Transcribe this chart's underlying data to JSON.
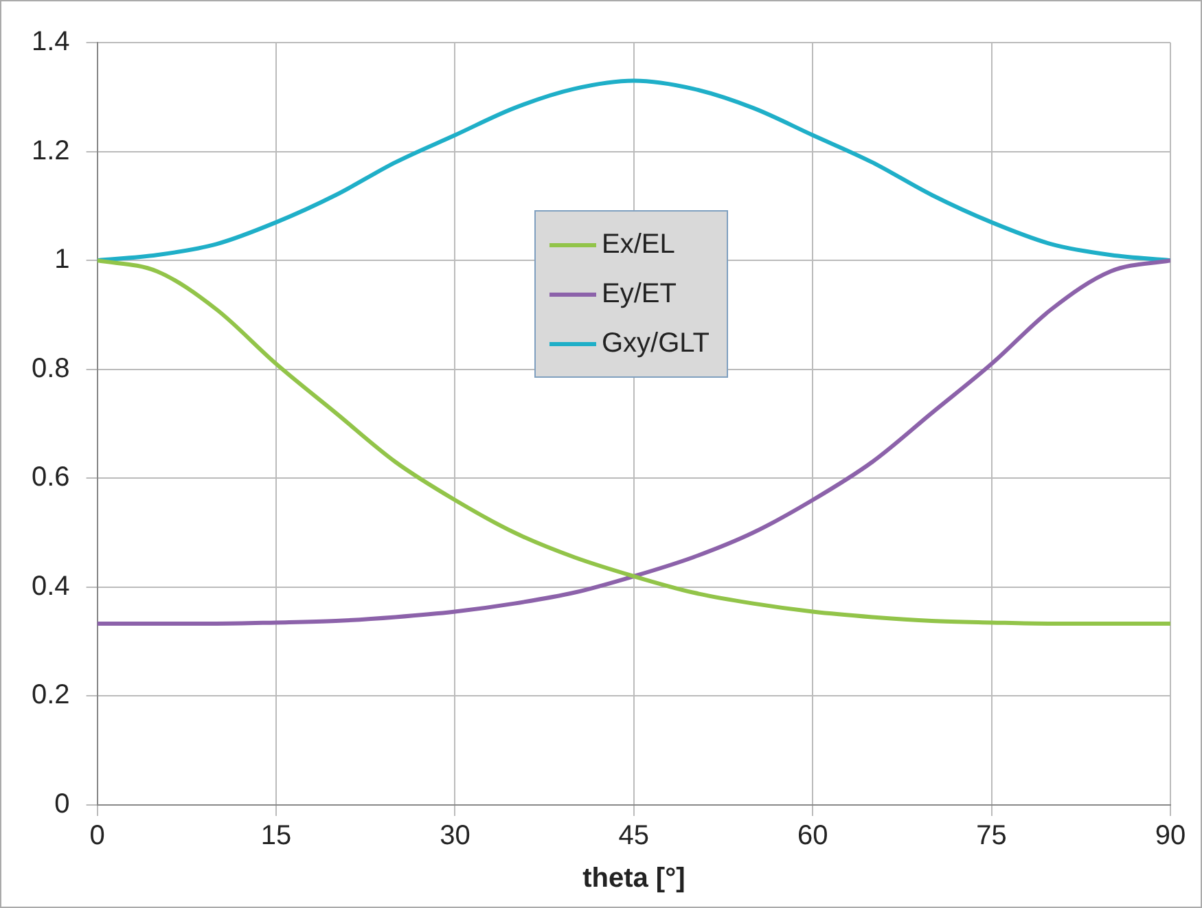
{
  "chart_data": {
    "type": "line",
    "xlabel": "theta [°]",
    "x": [
      0,
      5,
      10,
      15,
      20,
      25,
      30,
      35,
      40,
      45,
      50,
      55,
      60,
      65,
      70,
      75,
      80,
      85,
      90
    ],
    "series": [
      {
        "name": "Ex/EL",
        "color": "#92c449",
        "values": [
          1.0,
          0.98,
          0.91,
          0.81,
          0.72,
          0.63,
          0.56,
          0.5,
          0.455,
          0.42,
          0.39,
          0.37,
          0.355,
          0.345,
          0.338,
          0.335,
          0.333,
          0.333,
          0.333
        ]
      },
      {
        "name": "Ey/ET",
        "color": "#8c62aa",
        "values": [
          0.333,
          0.333,
          0.333,
          0.335,
          0.338,
          0.345,
          0.355,
          0.37,
          0.39,
          0.42,
          0.455,
          0.5,
          0.56,
          0.63,
          0.72,
          0.81,
          0.91,
          0.98,
          1.0
        ]
      },
      {
        "name": "Gxy/GLT",
        "color": "#1fafc8",
        "values": [
          1.0,
          1.01,
          1.03,
          1.07,
          1.12,
          1.18,
          1.23,
          1.28,
          1.315,
          1.33,
          1.315,
          1.28,
          1.23,
          1.18,
          1.12,
          1.07,
          1.03,
          1.01,
          1.0
        ]
      }
    ],
    "xlim": [
      0,
      90
    ],
    "xticks": [
      0,
      15,
      30,
      45,
      60,
      75,
      90
    ],
    "ylim": [
      0,
      1.4
    ],
    "yticks": [
      0,
      0.2,
      0.4,
      0.6,
      0.8,
      1,
      1.2,
      1.4
    ],
    "grid": true,
    "legend": "top",
    "marker": "none",
    "line_style": "solid"
  }
}
